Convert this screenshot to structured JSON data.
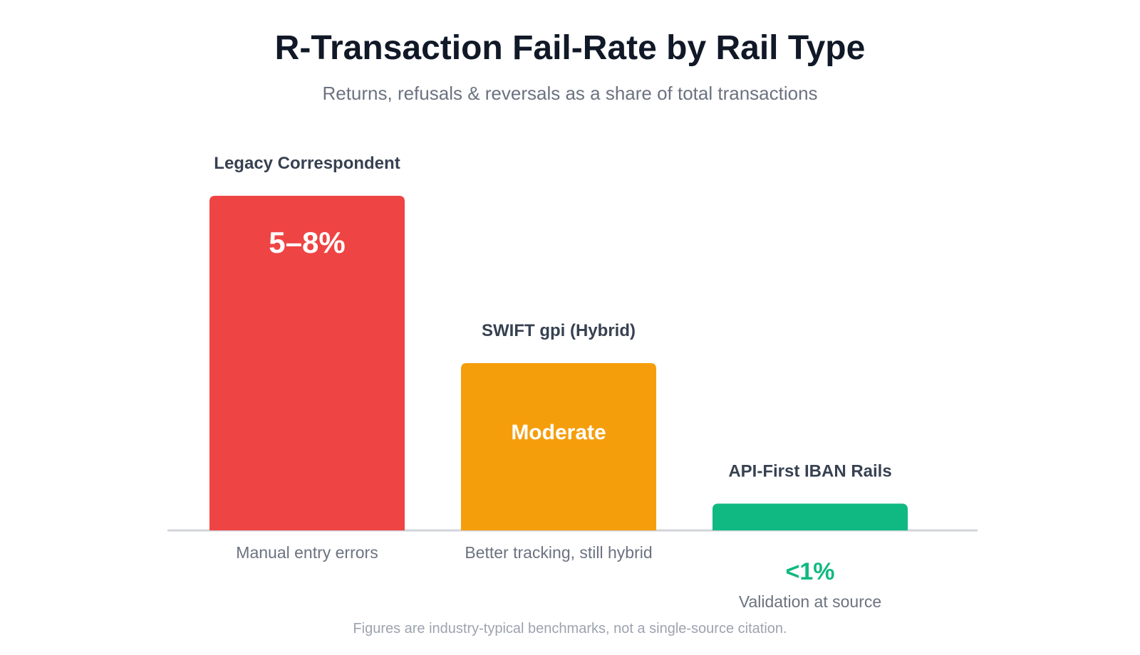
{
  "title": "R-Transaction Fail-Rate by Rail Type",
  "subtitle": "Returns, refusals & reversals as a share of total transactions",
  "footnote": "Figures are industry-typical benchmarks, not a single-source citation.",
  "chart_data": {
    "type": "bar",
    "ylabel": "",
    "xlabel": "",
    "value_unit": "relative fail-rate (share of tallest bar)",
    "categories": [
      "Legacy Correspondent",
      "SWIFT gpi (Hybrid)",
      "API-First IBAN Rails"
    ],
    "values": [
      1.0,
      0.5,
      0.08
    ],
    "value_labels": [
      "5–8%",
      "Moderate",
      "<1%"
    ],
    "captions": [
      "Manual entry errors",
      "Better tracking, still hybrid",
      "Validation at source"
    ],
    "colors": [
      "#ef4444",
      "#f59e0b",
      "#10b981"
    ],
    "label_placement": [
      "inside",
      "inside",
      "below"
    ],
    "grid": false,
    "legend": "none"
  }
}
